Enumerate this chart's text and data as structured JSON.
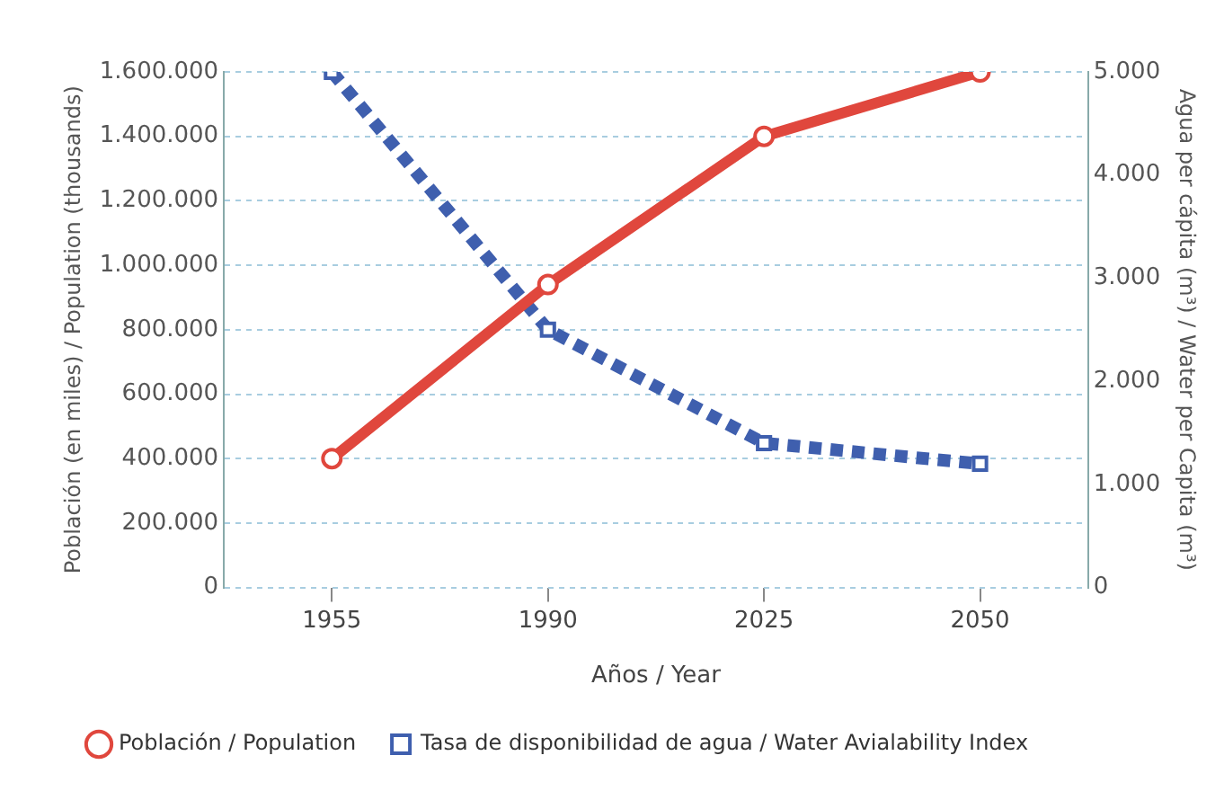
{
  "chart_data": {
    "type": "line",
    "categories": [
      "1955",
      "1990",
      "2025",
      "2050"
    ],
    "xlabel": "Años / Year",
    "ylabel": "Población (en miles) / Population (thousands)",
    "y2label": "Agua per cápita (m³) / Water per Capita (m³)",
    "series": [
      {
        "name": "Población / Population",
        "color": "#e0473d",
        "values": [
          400000,
          940000,
          1400000,
          1600000
        ],
        "marker": "circle",
        "line_style": "solid"
      },
      {
        "name": "Tasa de disponibilidad de agua / Water Avialability Index",
        "color": "#3f5fae",
        "values": [
          5000,
          2500,
          1400,
          1200
        ],
        "axis": "y2",
        "marker": "square",
        "line_style": "dotted"
      }
    ],
    "ylim": [
      0,
      1600000
    ],
    "yticks": [
      0,
      {
        "value": 200000,
        "label": "200.000"
      },
      {
        "value": 400000,
        "label": "400.000"
      },
      {
        "value": 600000,
        "label": "600.000"
      },
      {
        "value": 800000,
        "label": "800.000"
      },
      {
        "value": 1000000,
        "label": "1.000.000"
      },
      {
        "value": 1200000,
        "label": "1.200.000"
      },
      {
        "value": 1400000,
        "label": "1.400.000"
      },
      {
        "value": 1600000,
        "label": "1.600.000"
      }
    ],
    "y2lim": [
      0,
      5000
    ],
    "y2ticks": [
      0,
      {
        "value": 1000,
        "label": "1.000"
      },
      {
        "value": 2000,
        "label": "2.000"
      },
      {
        "value": 3000,
        "label": "3.000"
      },
      {
        "value": 4000,
        "label": "4.000"
      },
      {
        "value": 5000,
        "label": "5.000"
      }
    ],
    "grid": "y",
    "legend": "bottom"
  }
}
